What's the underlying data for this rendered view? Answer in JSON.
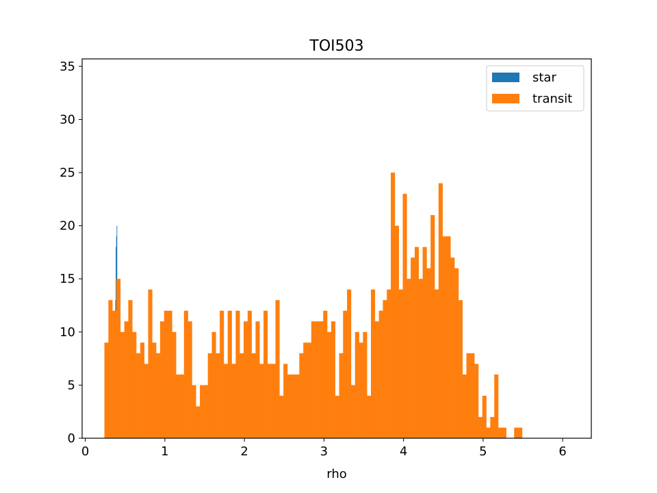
{
  "chart_data": {
    "type": "bar",
    "title": "TOI503",
    "xlabel": "rho",
    "ylabel": "",
    "xlim": [
      -0.04,
      6.36
    ],
    "ylim": [
      0,
      35.7
    ],
    "x_ticks": [
      0,
      1,
      2,
      3,
      4,
      5,
      6
    ],
    "y_ticks": [
      0,
      5,
      10,
      15,
      20,
      25,
      30,
      35
    ],
    "grid": false,
    "legend_position": "top-right",
    "series": [
      {
        "name": "star",
        "color": "#1f77b4",
        "bin_start": 0.3716,
        "bin_width": 0.0054,
        "values": [
          11,
          13,
          18,
          19,
          20
        ]
      },
      {
        "name": "transit",
        "color": "#ff7f0e",
        "bin_start": 0.24,
        "bin_width": 0.05,
        "values": [
          9,
          13,
          12,
          15,
          10,
          11,
          13,
          10,
          8,
          9,
          7,
          14,
          9,
          8,
          11,
          12,
          12,
          10,
          6,
          6,
          12,
          11,
          5,
          3,
          5,
          5,
          8,
          10,
          8,
          12,
          7,
          12,
          7,
          12,
          8,
          11,
          12,
          8,
          11,
          7,
          12,
          7,
          7,
          13,
          4,
          7,
          6,
          6,
          6,
          8,
          9,
          9,
          11,
          11,
          11,
          12,
          10,
          11,
          4,
          8,
          12,
          14,
          5,
          10,
          9,
          10,
          4,
          14,
          11,
          12,
          13,
          14,
          25,
          20,
          14,
          23,
          15,
          17,
          18,
          15,
          18,
          16,
          21,
          14,
          24,
          19,
          19,
          17,
          16,
          13,
          6,
          8,
          8,
          7,
          2,
          4,
          1,
          2,
          6,
          1,
          1,
          0,
          0,
          1,
          1
        ]
      }
    ]
  }
}
